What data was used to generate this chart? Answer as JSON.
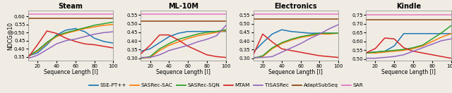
{
  "x": [
    10,
    20,
    30,
    40,
    50,
    60,
    70,
    80,
    90,
    100
  ],
  "subplots": [
    {
      "title": "Steam",
      "ylim": [
        0.325,
        0.635
      ],
      "yticks": [
        0.35,
        0.4,
        0.45,
        0.5,
        0.55,
        0.6
      ],
      "ylabel": "NDCG@10",
      "series": {
        "SSE-PT++": [
          0.355,
          0.375,
          0.425,
          0.485,
          0.515,
          0.525,
          0.505,
          0.465,
          0.445,
          0.435
        ],
        "SASRec-SAC": [
          0.355,
          0.385,
          0.435,
          0.475,
          0.495,
          0.51,
          0.525,
          0.535,
          0.545,
          0.55
        ],
        "SASRec-SQN": [
          0.355,
          0.39,
          0.44,
          0.48,
          0.5,
          0.515,
          0.53,
          0.545,
          0.555,
          0.565
        ],
        "MTAM": [
          0.345,
          0.425,
          0.51,
          0.495,
          0.465,
          0.445,
          0.43,
          0.425,
          0.415,
          0.405
        ],
        "TISASRec": [
          0.34,
          0.36,
          0.395,
          0.43,
          0.45,
          0.46,
          0.475,
          0.49,
          0.5,
          0.505
        ],
        "AdaptSubSeq": [
          0.59,
          0.59,
          0.59,
          0.59,
          0.59,
          0.59,
          0.59,
          0.59,
          0.59,
          0.59
        ],
        "SAR": [
          0.615,
          0.615,
          0.615,
          0.615,
          0.615,
          0.615,
          0.615,
          0.615,
          0.615,
          0.615
        ]
      }
    },
    {
      "title": "ML-10M",
      "ylim": [
        0.285,
        0.575
      ],
      "yticks": [
        0.3,
        0.35,
        0.4,
        0.45,
        0.5,
        0.55
      ],
      "ylabel": "",
      "series": {
        "SSE-PT++": [
          0.34,
          0.355,
          0.39,
          0.425,
          0.445,
          0.455,
          0.455,
          0.455,
          0.455,
          0.455
        ],
        "SASRec-SAC": [
          0.3,
          0.305,
          0.345,
          0.375,
          0.395,
          0.415,
          0.43,
          0.44,
          0.45,
          0.46
        ],
        "SASRec-SQN": [
          0.3,
          0.31,
          0.355,
          0.385,
          0.41,
          0.425,
          0.44,
          0.45,
          0.455,
          0.465
        ],
        "MTAM": [
          0.325,
          0.375,
          0.435,
          0.435,
          0.405,
          0.37,
          0.345,
          0.32,
          0.31,
          0.305
        ],
        "TISASRec": [
          0.305,
          0.305,
          0.32,
          0.345,
          0.36,
          0.375,
          0.395,
          0.41,
          0.43,
          0.49
        ],
        "AdaptSubSeq": [
          0.515,
          0.515,
          0.515,
          0.515,
          0.515,
          0.515,
          0.515,
          0.515,
          0.515,
          0.515
        ],
        "SAR": [
          0.555,
          0.555,
          0.555,
          0.555,
          0.555,
          0.555,
          0.555,
          0.555,
          0.555,
          0.555
        ]
      }
    },
    {
      "title": "Electronics",
      "ylim": [
        0.285,
        0.575
      ],
      "yticks": [
        0.3,
        0.35,
        0.4,
        0.45,
        0.5,
        0.55
      ],
      "ylabel": "",
      "series": {
        "SSE-PT++": [
          0.335,
          0.39,
          0.44,
          0.465,
          0.455,
          0.45,
          0.445,
          0.445,
          0.445,
          0.445
        ],
        "SASRec-SAC": [
          0.3,
          0.31,
          0.355,
          0.385,
          0.405,
          0.42,
          0.43,
          0.44,
          0.44,
          0.445
        ],
        "SASRec-SQN": [
          0.3,
          0.315,
          0.36,
          0.39,
          0.41,
          0.425,
          0.435,
          0.445,
          0.445,
          0.445
        ],
        "MTAM": [
          0.32,
          0.44,
          0.395,
          0.355,
          0.345,
          0.335,
          0.325,
          0.315,
          0.31,
          0.305
        ],
        "TISASRec": [
          0.305,
          0.305,
          0.31,
          0.335,
          0.36,
          0.385,
          0.415,
          0.44,
          0.47,
          0.495
        ],
        "AdaptSubSeq": [
          0.525,
          0.525,
          0.525,
          0.525,
          0.525,
          0.525,
          0.525,
          0.525,
          0.525,
          0.525
        ],
        "SAR": [
          0.555,
          0.555,
          0.555,
          0.555,
          0.555,
          0.555,
          0.555,
          0.555,
          0.555,
          0.555
        ]
      }
    },
    {
      "title": "Kindle",
      "ylim": [
        0.49,
        0.775
      ],
      "yticks": [
        0.5,
        0.55,
        0.6,
        0.65,
        0.7,
        0.75
      ],
      "ylabel": "",
      "series": {
        "SSE-PT++": [
          0.535,
          0.54,
          0.545,
          0.575,
          0.645,
          0.645,
          0.645,
          0.645,
          0.645,
          0.645
        ],
        "SASRec-SAC": [
          0.535,
          0.535,
          0.54,
          0.545,
          0.55,
          0.56,
          0.575,
          0.6,
          0.625,
          0.645
        ],
        "SASRec-SQN": [
          0.535,
          0.54,
          0.545,
          0.55,
          0.555,
          0.565,
          0.58,
          0.615,
          0.65,
          0.69
        ],
        "MTAM": [
          0.535,
          0.56,
          0.62,
          0.615,
          0.565,
          0.545,
          0.535,
          0.525,
          0.515,
          0.505
        ],
        "TISASRec": [
          0.505,
          0.505,
          0.51,
          0.515,
          0.525,
          0.545,
          0.565,
          0.585,
          0.605,
          0.615
        ],
        "AdaptSubSeq": [
          0.725,
          0.725,
          0.725,
          0.725,
          0.725,
          0.725,
          0.725,
          0.725,
          0.725,
          0.725
        ],
        "SAR": [
          0.75,
          0.75,
          0.75,
          0.75,
          0.75,
          0.75,
          0.75,
          0.75,
          0.75,
          0.75
        ]
      }
    }
  ],
  "colors": {
    "SSE-PT++": "#1f77b4",
    "SASRec-SAC": "#ff7f0e",
    "SASRec-SQN": "#2ca02c",
    "MTAM": "#d62728",
    "TISASRec": "#9467bd",
    "AdaptSubSeq": "#8B4513",
    "SAR": "#e377c2"
  },
  "legend_order": [
    "SSE-PT++",
    "SASRec-SAC",
    "SASRec-SQN",
    "MTAM",
    "TISASRec",
    "AdaptSubSeq",
    "SAR"
  ],
  "xlabel": "Sequence Length [l]",
  "bg_color": "#f0ece4"
}
